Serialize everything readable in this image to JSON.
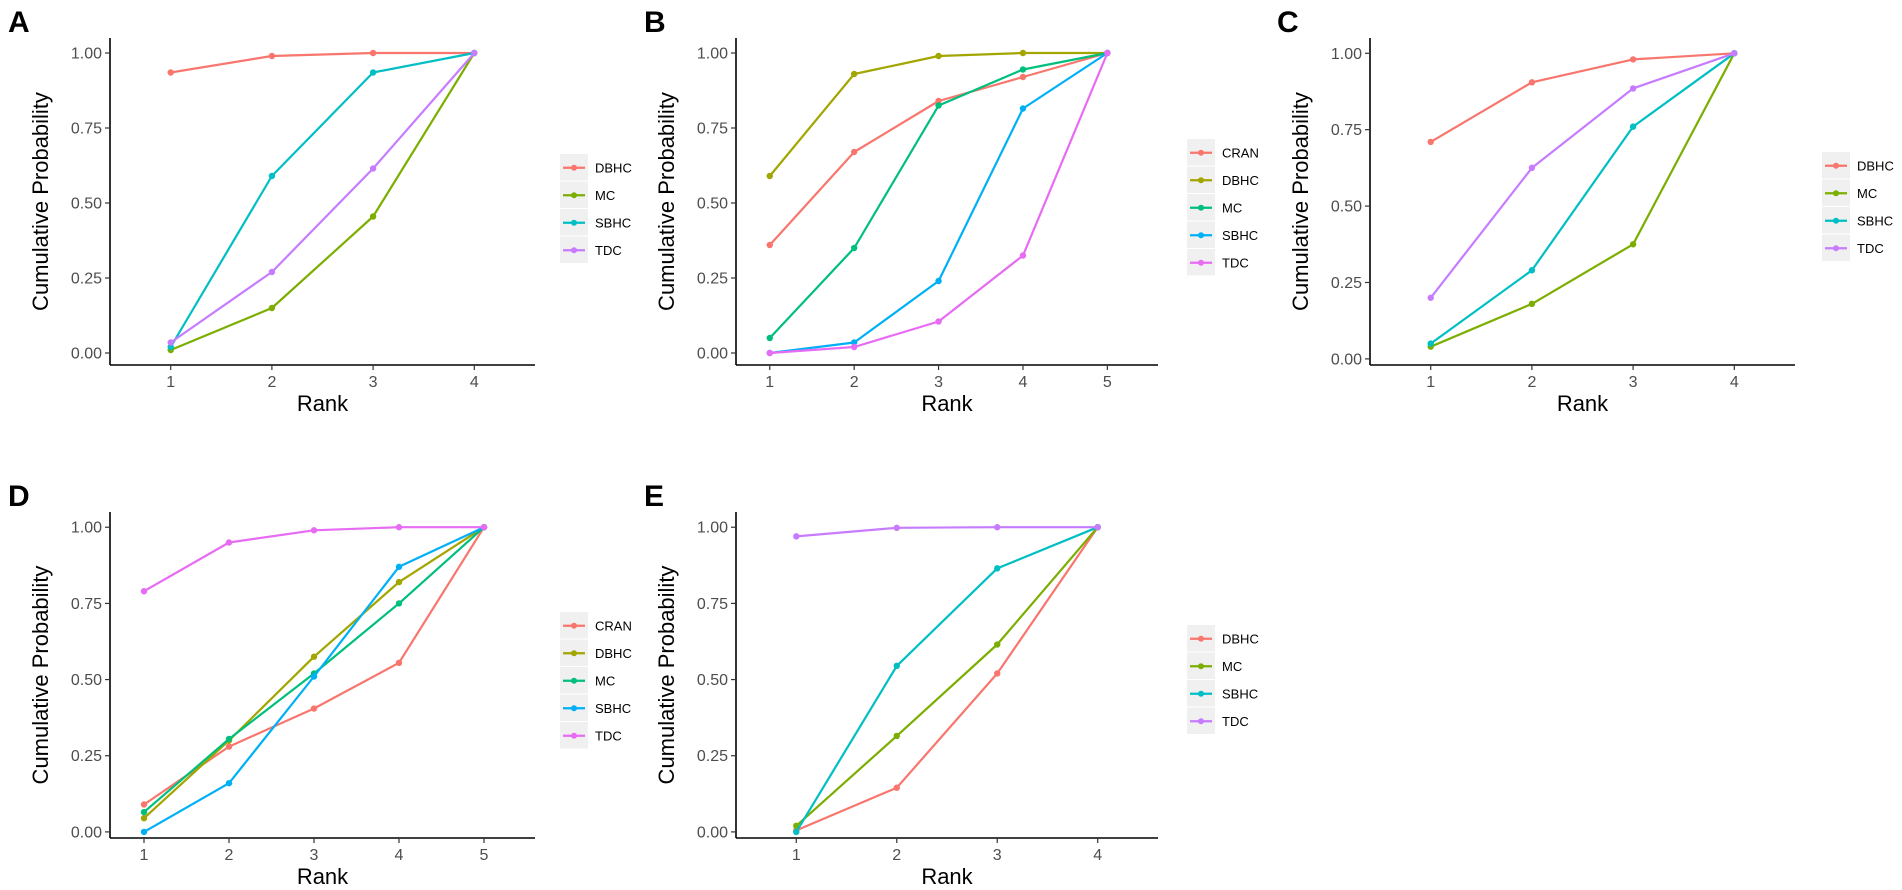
{
  "figure": {
    "colors": {
      "CRAN": "#F8766D",
      "DBHC": "#A3A500",
      "MC": "#00BF7D",
      "SBHC": "#00B0F6",
      "TDC": "#E76BF3"
    }
  },
  "chart_data": [
    {
      "panel": "A",
      "type": "line",
      "xlabel": "Rank",
      "ylabel": "Cumulative Probability",
      "x": [
        1,
        2,
        3,
        4
      ],
      "xlim": [
        0.4,
        4.6
      ],
      "ylim": [
        -0.04,
        1.05
      ],
      "yticks": [
        0.0,
        0.25,
        0.5,
        0.75,
        1.0
      ],
      "ytick_labels": [
        "0.00",
        "0.25",
        "0.50",
        "0.75",
        "1.00"
      ],
      "xticks": [
        1,
        2,
        3,
        4
      ],
      "xtick_labels": [
        "1",
        "2",
        "3",
        "4"
      ],
      "legend_position": "right",
      "series": [
        {
          "name": "DBHC",
          "color": "#F8766D",
          "values": [
            0.935,
            0.99,
            1.0,
            1.0
          ]
        },
        {
          "name": "MC",
          "color": "#7CAE00",
          "values": [
            0.01,
            0.15,
            0.455,
            1.0
          ]
        },
        {
          "name": "SBHC",
          "color": "#00BFC4",
          "values": [
            0.02,
            0.59,
            0.935,
            1.0
          ]
        },
        {
          "name": "TDC",
          "color": "#C77CFF",
          "values": [
            0.035,
            0.27,
            0.615,
            1.0
          ]
        }
      ]
    },
    {
      "panel": "B",
      "type": "line",
      "xlabel": "Rank",
      "ylabel": "Cumulative Probability",
      "x": [
        1,
        2,
        3,
        4,
        5
      ],
      "xlim": [
        0.6,
        5.6
      ],
      "ylim": [
        -0.04,
        1.05
      ],
      "yticks": [
        0.0,
        0.25,
        0.5,
        0.75,
        1.0
      ],
      "ytick_labels": [
        "0.00",
        "0.25",
        "0.50",
        "0.75",
        "1.00"
      ],
      "xticks": [
        1,
        2,
        3,
        4,
        5
      ],
      "xtick_labels": [
        "1",
        "2",
        "3",
        "4",
        "5"
      ],
      "legend_position": "right",
      "series": [
        {
          "name": "CRAN",
          "color": "#F8766D",
          "values": [
            0.36,
            0.67,
            0.84,
            0.92,
            1.0
          ]
        },
        {
          "name": "DBHC",
          "color": "#A3A500",
          "values": [
            0.59,
            0.93,
            0.99,
            1.0,
            1.0
          ]
        },
        {
          "name": "MC",
          "color": "#00BF7D",
          "values": [
            0.05,
            0.35,
            0.825,
            0.945,
            1.0
          ]
        },
        {
          "name": "SBHC",
          "color": "#00B0F6",
          "values": [
            0.0,
            0.035,
            0.24,
            0.815,
            1.0
          ]
        },
        {
          "name": "TDC",
          "color": "#E76BF3",
          "values": [
            0.0,
            0.02,
            0.105,
            0.325,
            1.0
          ]
        }
      ]
    },
    {
      "panel": "C",
      "type": "line",
      "xlabel": "Rank",
      "ylabel": "Cumulative Probability",
      "x": [
        1,
        2,
        3,
        4
      ],
      "xlim": [
        0.4,
        4.6
      ],
      "ylim": [
        -0.02,
        1.05
      ],
      "yticks": [
        0.0,
        0.25,
        0.5,
        0.75,
        1.0
      ],
      "ytick_labels": [
        "0.00",
        "0.25",
        "0.50",
        "0.75",
        "1.00"
      ],
      "xticks": [
        1,
        2,
        3,
        4
      ],
      "xtick_labels": [
        "1",
        "2",
        "3",
        "4"
      ],
      "legend_position": "right",
      "series": [
        {
          "name": "DBHC",
          "color": "#F8766D",
          "values": [
            0.71,
            0.905,
            0.98,
            1.0
          ]
        },
        {
          "name": "MC",
          "color": "#7CAE00",
          "values": [
            0.04,
            0.18,
            0.375,
            1.0
          ]
        },
        {
          "name": "SBHC",
          "color": "#00BFC4",
          "values": [
            0.05,
            0.29,
            0.76,
            1.0
          ]
        },
        {
          "name": "TDC",
          "color": "#C77CFF",
          "values": [
            0.2,
            0.625,
            0.885,
            1.0
          ]
        }
      ]
    },
    {
      "panel": "D",
      "type": "line",
      "xlabel": "Rank",
      "ylabel": "Cumulative Probability",
      "x": [
        1,
        2,
        3,
        4,
        5
      ],
      "xlim": [
        0.6,
        5.6
      ],
      "ylim": [
        -0.02,
        1.05
      ],
      "yticks": [
        0.0,
        0.25,
        0.5,
        0.75,
        1.0
      ],
      "ytick_labels": [
        "0.00",
        "0.25",
        "0.50",
        "0.75",
        "1.00"
      ],
      "xticks": [
        1,
        2,
        3,
        4,
        5
      ],
      "xtick_labels": [
        "1",
        "2",
        "3",
        "4",
        "5"
      ],
      "legend_position": "right",
      "series": [
        {
          "name": "CRAN",
          "color": "#F8766D",
          "values": [
            0.09,
            0.28,
            0.405,
            0.555,
            1.0
          ]
        },
        {
          "name": "DBHC",
          "color": "#A3A500",
          "values": [
            0.045,
            0.3,
            0.575,
            0.82,
            1.0
          ]
        },
        {
          "name": "MC",
          "color": "#00BF7D",
          "values": [
            0.065,
            0.305,
            0.52,
            0.75,
            1.0
          ]
        },
        {
          "name": "SBHC",
          "color": "#00B0F6",
          "values": [
            0.0,
            0.16,
            0.51,
            0.87,
            1.0
          ]
        },
        {
          "name": "TDC",
          "color": "#E76BF3",
          "values": [
            0.79,
            0.95,
            0.99,
            1.0,
            1.0
          ]
        }
      ]
    },
    {
      "panel": "E",
      "type": "line",
      "xlabel": "Rank",
      "ylabel": "Cumulative Probability",
      "x": [
        1,
        2,
        3,
        4
      ],
      "xlim": [
        0.4,
        4.6
      ],
      "ylim": [
        -0.02,
        1.05
      ],
      "yticks": [
        0.0,
        0.25,
        0.5,
        0.75,
        1.0
      ],
      "ytick_labels": [
        "0.00",
        "0.25",
        "0.50",
        "0.75",
        "1.00"
      ],
      "xticks": [
        1,
        2,
        3,
        4
      ],
      "xtick_labels": [
        "1",
        "2",
        "3",
        "4"
      ],
      "legend_position": "right",
      "series": [
        {
          "name": "DBHC",
          "color": "#F8766D",
          "values": [
            0.005,
            0.145,
            0.52,
            1.0
          ]
        },
        {
          "name": "MC",
          "color": "#7CAE00",
          "values": [
            0.02,
            0.315,
            0.615,
            1.0
          ]
        },
        {
          "name": "SBHC",
          "color": "#00BFC4",
          "values": [
            0.0,
            0.545,
            0.865,
            1.0
          ]
        },
        {
          "name": "TDC",
          "color": "#C77CFF",
          "values": [
            0.97,
            0.998,
            1.0,
            1.0
          ]
        }
      ]
    }
  ]
}
